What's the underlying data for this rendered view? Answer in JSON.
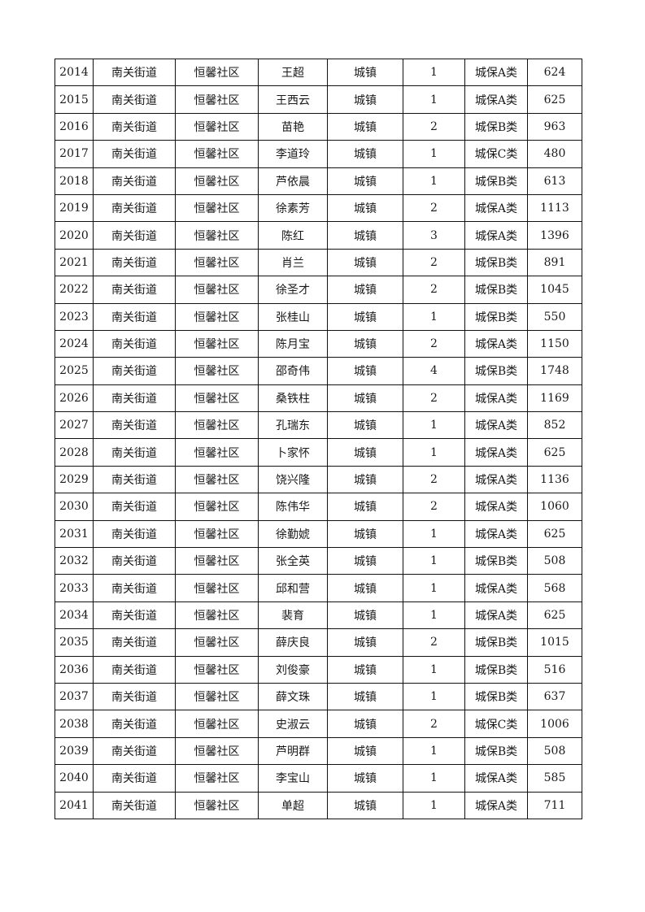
{
  "table": {
    "rows": [
      [
        "2014",
        "南关街道",
        "恒馨社区",
        "王超",
        "城镇",
        "1",
        "城保A类",
        "624"
      ],
      [
        "2015",
        "南关街道",
        "恒馨社区",
        "王西云",
        "城镇",
        "1",
        "城保A类",
        "625"
      ],
      [
        "2016",
        "南关街道",
        "恒馨社区",
        "苗艳",
        "城镇",
        "2",
        "城保B类",
        "963"
      ],
      [
        "2017",
        "南关街道",
        "恒馨社区",
        "李道玲",
        "城镇",
        "1",
        "城保C类",
        "480"
      ],
      [
        "2018",
        "南关街道",
        "恒馨社区",
        "芦依晨",
        "城镇",
        "1",
        "城保B类",
        "613"
      ],
      [
        "2019",
        "南关街道",
        "恒馨社区",
        "徐素芳",
        "城镇",
        "2",
        "城保A类",
        "1113"
      ],
      [
        "2020",
        "南关街道",
        "恒馨社区",
        "陈红",
        "城镇",
        "3",
        "城保A类",
        "1396"
      ],
      [
        "2021",
        "南关街道",
        "恒馨社区",
        "肖兰",
        "城镇",
        "2",
        "城保B类",
        "891"
      ],
      [
        "2022",
        "南关街道",
        "恒馨社区",
        "徐圣才",
        "城镇",
        "2",
        "城保B类",
        "1045"
      ],
      [
        "2023",
        "南关街道",
        "恒馨社区",
        "张桂山",
        "城镇",
        "1",
        "城保B类",
        "550"
      ],
      [
        "2024",
        "南关街道",
        "恒馨社区",
        "陈月宝",
        "城镇",
        "2",
        "城保A类",
        "1150"
      ],
      [
        "2025",
        "南关街道",
        "恒馨社区",
        "邵奇伟",
        "城镇",
        "4",
        "城保B类",
        "1748"
      ],
      [
        "2026",
        "南关街道",
        "恒馨社区",
        "桑铁柱",
        "城镇",
        "2",
        "城保A类",
        "1169"
      ],
      [
        "2027",
        "南关街道",
        "恒馨社区",
        "孔瑞东",
        "城镇",
        "1",
        "城保A类",
        "852"
      ],
      [
        "2028",
        "南关街道",
        "恒馨社区",
        "卜家怀",
        "城镇",
        "1",
        "城保A类",
        "625"
      ],
      [
        "2029",
        "南关街道",
        "恒馨社区",
        "饶兴隆",
        "城镇",
        "2",
        "城保A类",
        "1136"
      ],
      [
        "2030",
        "南关街道",
        "恒馨社区",
        "陈伟华",
        "城镇",
        "2",
        "城保A类",
        "1060"
      ],
      [
        "2031",
        "南关街道",
        "恒馨社区",
        "徐勤婋",
        "城镇",
        "1",
        "城保A类",
        "625"
      ],
      [
        "2032",
        "南关街道",
        "恒馨社区",
        "张全英",
        "城镇",
        "1",
        "城保B类",
        "508"
      ],
      [
        "2033",
        "南关街道",
        "恒馨社区",
        "邱和营",
        "城镇",
        "1",
        "城保A类",
        "568"
      ],
      [
        "2034",
        "南关街道",
        "恒馨社区",
        "裴育",
        "城镇",
        "1",
        "城保A类",
        "625"
      ],
      [
        "2035",
        "南关街道",
        "恒馨社区",
        "薛庆良",
        "城镇",
        "2",
        "城保B类",
        "1015"
      ],
      [
        "2036",
        "南关街道",
        "恒馨社区",
        "刘俊豪",
        "城镇",
        "1",
        "城保B类",
        "516"
      ],
      [
        "2037",
        "南关街道",
        "恒馨社区",
        "薛文珠",
        "城镇",
        "1",
        "城保B类",
        "637"
      ],
      [
        "2038",
        "南关街道",
        "恒馨社区",
        "史淑云",
        "城镇",
        "2",
        "城保C类",
        "1006"
      ],
      [
        "2039",
        "南关街道",
        "恒馨社区",
        "芦明群",
        "城镇",
        "1",
        "城保B类",
        "508"
      ],
      [
        "2040",
        "南关街道",
        "恒馨社区",
        "李宝山",
        "城镇",
        "1",
        "城保A类",
        "585"
      ],
      [
        "2041",
        "南关街道",
        "恒馨社区",
        "单超",
        "城镇",
        "1",
        "城保A类",
        "711"
      ]
    ]
  }
}
